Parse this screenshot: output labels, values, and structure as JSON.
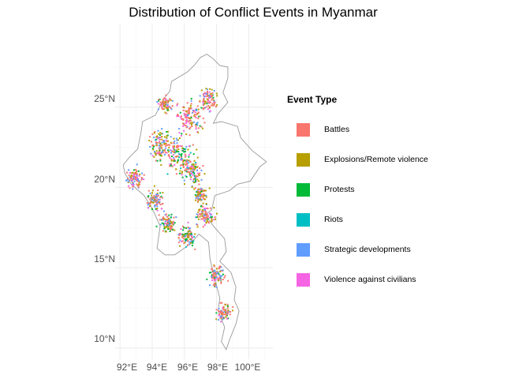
{
  "title": "Distribution of Conflict Events in Myanmar",
  "axes": {
    "x_ticks": [
      "92°E",
      "94°E",
      "96°E",
      "98°E",
      "100°E"
    ],
    "y_ticks": [
      "25°N",
      "20°N",
      "15°N",
      "10°N"
    ]
  },
  "legend": {
    "title": "Event Type",
    "placement": "right",
    "items": [
      {
        "label": "Battles",
        "color": "#F8766D"
      },
      {
        "label": "Explosions/Remote violence",
        "color": "#B79F00"
      },
      {
        "label": "Protests",
        "color": "#00BA38"
      },
      {
        "label": "Riots",
        "color": "#00BFC4"
      },
      {
        "label": "Strategic developments",
        "color": "#619CFF"
      },
      {
        "label": "Violence against civilians",
        "color": "#F564E3"
      }
    ]
  },
  "chart_data": {
    "type": "scatter",
    "title": "Distribution of Conflict Events in Myanmar",
    "xlabel": "",
    "ylabel": "",
    "xlim": [
      91.7,
      101.5
    ],
    "ylim": [
      9.3,
      30.2
    ],
    "grid": true,
    "legend_placement": "right",
    "series": [
      {
        "name": "Battles",
        "color": "#F8766D"
      },
      {
        "name": "Explosions/Remote violence",
        "color": "#B79F00"
      },
      {
        "name": "Protests",
        "color": "#00BA38"
      },
      {
        "name": "Riots",
        "color": "#00BFC4"
      },
      {
        "name": "Strategic developments",
        "color": "#619CFF"
      },
      {
        "name": "Violence against civilians",
        "color": "#F564E3"
      }
    ],
    "event_clusters": [
      {
        "lon": 95.6,
        "lat": 22.0,
        "spread": 0.9,
        "share": [
          0.3,
          0.22,
          0.18,
          0.05,
          0.15,
          0.1
        ]
      },
      {
        "lon": 94.6,
        "lat": 22.6,
        "spread": 0.7,
        "share": [
          0.28,
          0.3,
          0.15,
          0.02,
          0.15,
          0.1
        ]
      },
      {
        "lon": 96.3,
        "lat": 24.3,
        "spread": 0.8,
        "share": [
          0.45,
          0.2,
          0.05,
          0.02,
          0.18,
          0.1
        ]
      },
      {
        "lon": 97.5,
        "lat": 25.5,
        "spread": 0.5,
        "share": [
          0.5,
          0.2,
          0.05,
          0.0,
          0.15,
          0.1
        ]
      },
      {
        "lon": 96.5,
        "lat": 21.0,
        "spread": 0.6,
        "share": [
          0.3,
          0.25,
          0.15,
          0.02,
          0.18,
          0.1
        ]
      },
      {
        "lon": 96.2,
        "lat": 16.9,
        "spread": 0.5,
        "share": [
          0.25,
          0.2,
          0.25,
          0.05,
          0.15,
          0.1
        ]
      },
      {
        "lon": 97.3,
        "lat": 18.3,
        "spread": 0.5,
        "share": [
          0.4,
          0.25,
          0.05,
          0.0,
          0.2,
          0.1
        ]
      },
      {
        "lon": 97.0,
        "lat": 19.6,
        "spread": 0.4,
        "share": [
          0.35,
          0.3,
          0.05,
          0.0,
          0.2,
          0.1
        ]
      },
      {
        "lon": 92.9,
        "lat": 20.5,
        "spread": 0.5,
        "share": [
          0.4,
          0.15,
          0.05,
          0.0,
          0.25,
          0.15
        ]
      },
      {
        "lon": 94.2,
        "lat": 19.2,
        "spread": 0.5,
        "share": [
          0.3,
          0.3,
          0.05,
          0.0,
          0.25,
          0.1
        ]
      },
      {
        "lon": 98.0,
        "lat": 14.5,
        "spread": 0.5,
        "share": [
          0.45,
          0.15,
          0.1,
          0.0,
          0.2,
          0.1
        ]
      },
      {
        "lon": 98.5,
        "lat": 12.2,
        "spread": 0.4,
        "share": [
          0.4,
          0.2,
          0.1,
          0.0,
          0.2,
          0.1
        ]
      },
      {
        "lon": 95.0,
        "lat": 17.8,
        "spread": 0.5,
        "share": [
          0.3,
          0.25,
          0.2,
          0.0,
          0.15,
          0.1
        ]
      },
      {
        "lon": 94.8,
        "lat": 25.2,
        "spread": 0.4,
        "share": [
          0.45,
          0.25,
          0.05,
          0.0,
          0.15,
          0.1
        ]
      }
    ],
    "boundary": [
      [
        97.4,
        28.3
      ],
      [
        97.8,
        28.0
      ],
      [
        98.2,
        27.6
      ],
      [
        98.7,
        27.5
      ],
      [
        98.7,
        26.8
      ],
      [
        98.4,
        25.9
      ],
      [
        98.7,
        25.3
      ],
      [
        98.1,
        24.6
      ],
      [
        97.8,
        24.0
      ],
      [
        98.3,
        24.1
      ],
      [
        99.3,
        23.8
      ],
      [
        99.5,
        23.1
      ],
      [
        100.2,
        22.3
      ],
      [
        101.1,
        21.6
      ],
      [
        100.7,
        21.3
      ],
      [
        100.1,
        20.4
      ],
      [
        99.3,
        20.2
      ],
      [
        98.8,
        19.8
      ],
      [
        97.9,
        19.5
      ],
      [
        97.7,
        18.6
      ],
      [
        97.3,
        18.3
      ],
      [
        97.8,
        17.6
      ],
      [
        98.5,
        16.8
      ],
      [
        98.6,
        16.0
      ],
      [
        98.2,
        15.4
      ],
      [
        98.9,
        14.7
      ],
      [
        99.2,
        13.8
      ],
      [
        99.1,
        13.0
      ],
      [
        99.4,
        12.3
      ],
      [
        99.2,
        11.5
      ],
      [
        98.8,
        10.5
      ],
      [
        98.6,
        9.9
      ],
      [
        98.3,
        10.4
      ],
      [
        98.5,
        11.3
      ],
      [
        98.1,
        12.3
      ],
      [
        98.2,
        13.1
      ],
      [
        97.8,
        14.7
      ],
      [
        97.6,
        15.5
      ],
      [
        97.5,
        16.6
      ],
      [
        96.9,
        17.1
      ],
      [
        96.4,
        16.5
      ],
      [
        95.4,
        15.8
      ],
      [
        94.8,
        15.8
      ],
      [
        94.3,
        16.2
      ],
      [
        94.5,
        17.6
      ],
      [
        94.0,
        18.7
      ],
      [
        93.5,
        19.5
      ],
      [
        92.7,
        20.2
      ],
      [
        92.3,
        20.9
      ],
      [
        92.2,
        21.4
      ],
      [
        92.6,
        21.9
      ],
      [
        93.1,
        22.4
      ],
      [
        93.3,
        23.4
      ],
      [
        93.4,
        24.1
      ],
      [
        94.2,
        24.5
      ],
      [
        94.7,
        25.5
      ],
      [
        95.1,
        26.0
      ],
      [
        95.2,
        26.6
      ],
      [
        96.2,
        27.2
      ],
      [
        96.6,
        27.6
      ],
      [
        97.0,
        28.1
      ],
      [
        97.4,
        28.3
      ]
    ]
  }
}
